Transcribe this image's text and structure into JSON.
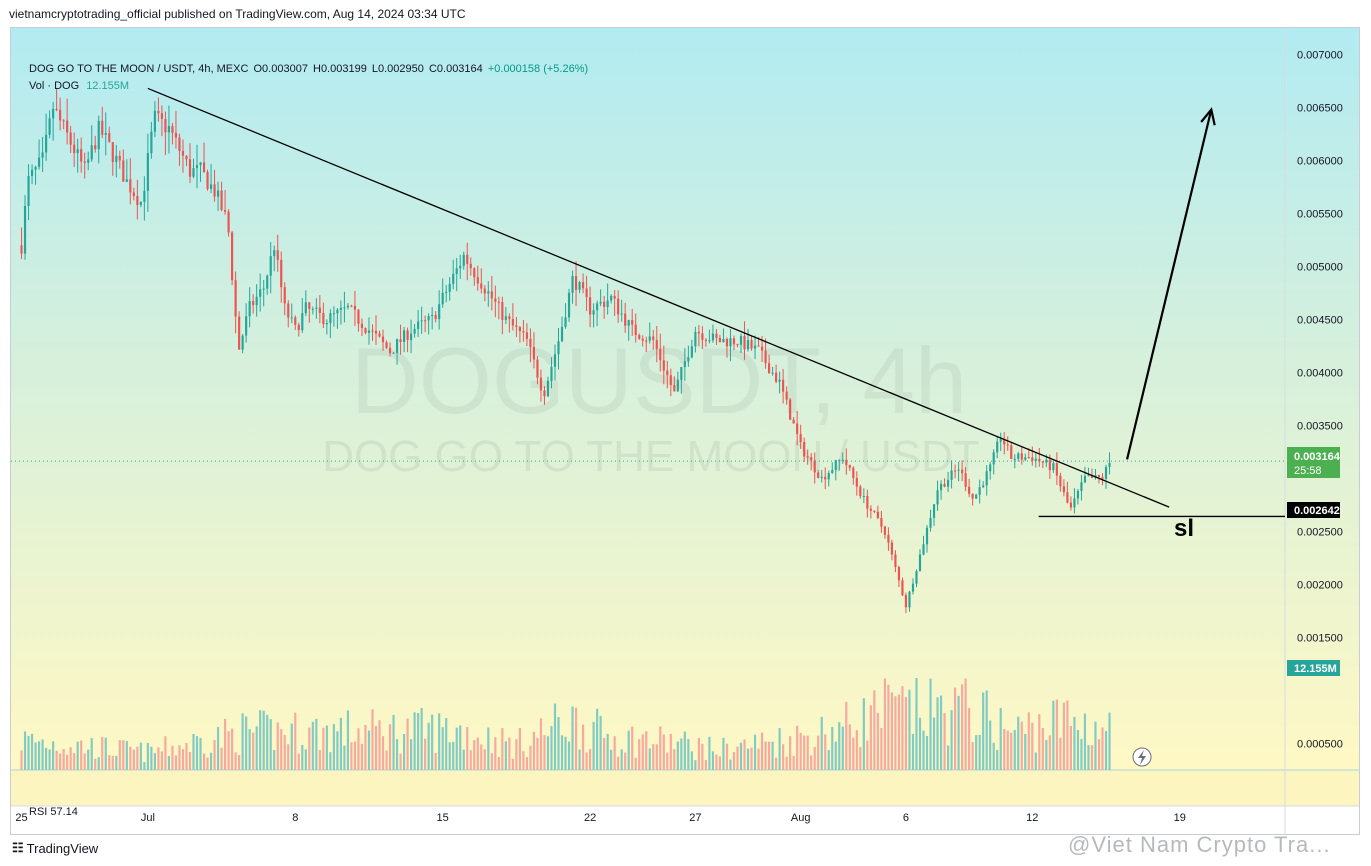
{
  "publisher_line": "vietnamcryptotrading_official published on TradingView.com, Aug 14, 2024 03:34 UTC",
  "legend": {
    "symbol": "DOG GO TO THE MOON / USDT, 4h, MEXC",
    "open": "O0.003007",
    "high": "H0.003199",
    "low": "L0.002950",
    "close": "C0.003164",
    "change": "+0.000158 (+5.26%)"
  },
  "vol_legend": {
    "label": "Vol · DOG",
    "value": "12.155M"
  },
  "rsi_label": "RSI  57.14",
  "watermark": {
    "ticker": "DOGUSDT, 4h",
    "name": "DOG GO TO THE MOON / USDT"
  },
  "annotations": {
    "sl_text": "sl"
  },
  "price_tags": {
    "last_price": "0.003164",
    "countdown": "25:58",
    "sl_price": "0.002642",
    "volume": "12.155M"
  },
  "footer": {
    "brand": "TradingView",
    "watermark": "@Viet Nam Crypto Tra..."
  },
  "colors": {
    "up": "#26a69a",
    "down": "#ef5350",
    "vol_up": "#80cbc4",
    "vol_down": "#f7a9a0",
    "bg_top": "#b2ebf2",
    "bg_bottom": "#fff9c4",
    "price_tag": "#4caf50",
    "sl_tag": "#000000",
    "vol_tag": "#26a69a"
  },
  "chart_data": {
    "type": "candlestick",
    "symbol": "DOG GO TO THE MOON / USDT",
    "interval": "4h",
    "exchange": "MEXC",
    "y_axis": {
      "ticks": [
        "0.007000",
        "0.006500",
        "0.006000",
        "0.005500",
        "0.005000",
        "0.004500",
        "0.004000",
        "0.003500",
        "0.002500",
        "0.002000",
        "0.001500",
        "0.000500"
      ],
      "range": [
        0.00025,
        0.00725
      ]
    },
    "x_axis": {
      "ticks": [
        "25",
        "Jul",
        "8",
        "15",
        "22",
        "27",
        "Aug",
        "6",
        "12",
        "19"
      ],
      "tick_days": [
        -6,
        0,
        7,
        14,
        21,
        26,
        31,
        36,
        42,
        49
      ],
      "range_days": [
        -6.5,
        54
      ]
    },
    "price_path": [
      [
        -6,
        0.0052
      ],
      [
        -5.7,
        0.0058
      ],
      [
        -5,
        0.006
      ],
      [
        -4.5,
        0.0065
      ],
      [
        -4,
        0.0063
      ],
      [
        -3.5,
        0.0061
      ],
      [
        -3,
        0.0059
      ],
      [
        -2.3,
        0.0063
      ],
      [
        -1.5,
        0.006
      ],
      [
        -1,
        0.0058
      ],
      [
        -0.3,
        0.0056
      ],
      [
        0.3,
        0.0064
      ],
      [
        1,
        0.0063
      ],
      [
        1.5,
        0.0061
      ],
      [
        2,
        0.0059
      ],
      [
        2.5,
        0.0059
      ],
      [
        3.2,
        0.0057
      ],
      [
        3.8,
        0.0054
      ],
      [
        4.3,
        0.0042
      ],
      [
        4.8,
        0.0046
      ],
      [
        5.5,
        0.0048
      ],
      [
        6,
        0.0052
      ],
      [
        6.5,
        0.0046
      ],
      [
        7,
        0.0044
      ],
      [
        7.5,
        0.0046
      ],
      [
        8.5,
        0.0045
      ],
      [
        9.5,
        0.0046
      ],
      [
        10.5,
        0.0044
      ],
      [
        11.5,
        0.0042
      ],
      [
        12.5,
        0.0044
      ],
      [
        13.5,
        0.0045
      ],
      [
        14.5,
        0.0049
      ],
      [
        15,
        0.0051
      ],
      [
        16,
        0.0048
      ],
      [
        17,
        0.0045
      ],
      [
        18,
        0.0043
      ],
      [
        18.8,
        0.0038
      ],
      [
        19.5,
        0.0043
      ],
      [
        20.2,
        0.0049
      ],
      [
        21,
        0.0046
      ],
      [
        22,
        0.0047
      ],
      [
        23,
        0.0044
      ],
      [
        24,
        0.0043
      ],
      [
        25,
        0.0038
      ],
      [
        26,
        0.0044
      ],
      [
        27,
        0.0043
      ],
      [
        28,
        0.0043
      ],
      [
        29,
        0.0042
      ],
      [
        30,
        0.0039
      ],
      [
        31,
        0.0033
      ],
      [
        32,
        0.003
      ],
      [
        33,
        0.0032
      ],
      [
        34,
        0.0028
      ],
      [
        35,
        0.0025
      ],
      [
        36,
        0.0018
      ],
      [
        36.7,
        0.0023
      ],
      [
        37.5,
        0.0029
      ],
      [
        38.5,
        0.0031
      ],
      [
        39.2,
        0.0028
      ],
      [
        40,
        0.0031
      ],
      [
        40.5,
        0.0034
      ],
      [
        41,
        0.0032
      ],
      [
        42,
        0.0032
      ],
      [
        43,
        0.0031
      ],
      [
        43.8,
        0.0027
      ],
      [
        44.5,
        0.003
      ],
      [
        45.3,
        0.003
      ],
      [
        45.8,
        0.0032
      ]
    ],
    "volume_profile": [
      [
        -6,
        0.6
      ],
      [
        0,
        0.35
      ],
      [
        4.5,
        0.75
      ],
      [
        14.5,
        0.8
      ],
      [
        17.5,
        0.5
      ],
      [
        20,
        1.0
      ],
      [
        22,
        0.65
      ],
      [
        25,
        0.55
      ],
      [
        27,
        0.4
      ],
      [
        31,
        0.65
      ],
      [
        33,
        0.85
      ],
      [
        35,
        1.2
      ],
      [
        37,
        1.15
      ],
      [
        39,
        1.2
      ],
      [
        41,
        0.75
      ],
      [
        43.5,
        1.0
      ],
      [
        45.8,
        0.8
      ]
    ],
    "trendline": {
      "from": [
        0,
        0.00668
      ],
      "to": [
        48.5,
        0.00273
      ]
    },
    "projection_arrow": {
      "from": [
        46.5,
        0.00318
      ],
      "to": [
        50.5,
        0.00648
      ]
    },
    "stop_loss": {
      "price": 0.002642,
      "from_day": 42.3
    },
    "last_price": 0.003164,
    "last_volume": "12.155M",
    "rsi": 57.14
  }
}
